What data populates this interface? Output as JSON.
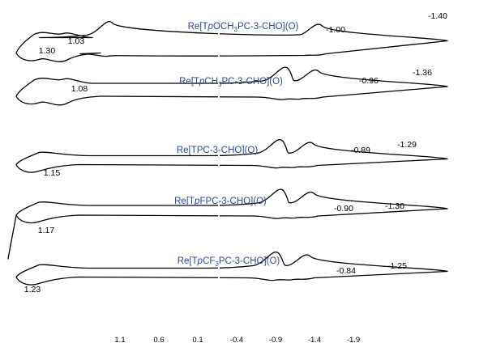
{
  "chart_data": {
    "type": "line",
    "title": "",
    "xlabel": "",
    "ylabel": "",
    "x_ticks": [
      "1.1",
      "0.6",
      "0.1",
      "-0.4",
      "-0.9",
      "-1.4",
      "-1.9"
    ],
    "x_tick_values": [
      1.1,
      0.6,
      0.1,
      -0.4,
      -0.9,
      -1.4,
      -1.9
    ],
    "xlim": [
      1.6,
      -1.9
    ],
    "x_reversed": true,
    "grid": false,
    "legend": "none",
    "series": [
      {
        "name": "Re[TpOCH3PC-3-CHO](O)",
        "name_parts": {
          "pre": "Re[T",
          "italic": "p",
          "mid": "OCH",
          "sub": "3",
          "post": "PC-3-CHO](O)"
        },
        "peaks": [
          {
            "label": "1.30",
            "potential": 1.3,
            "type": "cathodic"
          },
          {
            "label": "1.03",
            "potential": 1.03,
            "type": "anodic"
          },
          {
            "label": "-1.00",
            "potential": -1.0,
            "type": "cathodic"
          },
          {
            "label": "-1.40",
            "potential": -1.4,
            "type": "anodic"
          }
        ]
      },
      {
        "name": "Re[TpCH3PC-3-CHO](O)",
        "name_parts": {
          "pre": "Re[T",
          "italic": "p",
          "mid": "CH",
          "sub": "3",
          "post": "PC-3-CHO](O)"
        },
        "peaks": [
          {
            "label": "1.08",
            "potential": 1.08,
            "type": "half-wave"
          },
          {
            "label": "-0.96",
            "potential": -0.96,
            "type": "cathodic"
          },
          {
            "label": "-1.36",
            "potential": -1.36,
            "type": "anodic"
          }
        ]
      },
      {
        "name": "Re[TPC-3-CHO](O)",
        "name_parts": {
          "pre": "Re[TPC-3-CHO](O)",
          "italic": "",
          "mid": "",
          "sub": "",
          "post": ""
        },
        "peaks": [
          {
            "label": "1.15",
            "potential": 1.15,
            "type": "half-wave"
          },
          {
            "label": "-0.89",
            "potential": -0.89,
            "type": "cathodic"
          },
          {
            "label": "-1.29",
            "potential": -1.29,
            "type": "anodic"
          }
        ]
      },
      {
        "name": "Re[TpFPC-3-CHO](O)",
        "name_parts": {
          "pre": "Re[T",
          "italic": "p",
          "mid": "FPC-3-CHO](O)",
          "sub": "",
          "post": ""
        },
        "peaks": [
          {
            "label": "1.17",
            "potential": 1.17,
            "type": "half-wave"
          },
          {
            "label": "-0.90",
            "potential": -0.9,
            "type": "cathodic"
          },
          {
            "label": "-1.30",
            "potential": -1.3,
            "type": "anodic"
          }
        ]
      },
      {
        "name": "Re[TpCF3PC-3-CHO](O)",
        "name_parts": {
          "pre": "Re[T",
          "italic": "p",
          "mid": "CF",
          "sub": "3",
          "post": "PC-3-CHO](O)"
        },
        "peaks": [
          {
            "label": "1.23",
            "potential": 1.23,
            "type": "half-wave"
          },
          {
            "label": "-0.84",
            "potential": -0.84,
            "type": "cathodic"
          },
          {
            "label": "-1.25",
            "potential": -1.25,
            "type": "anodic"
          }
        ]
      }
    ]
  }
}
